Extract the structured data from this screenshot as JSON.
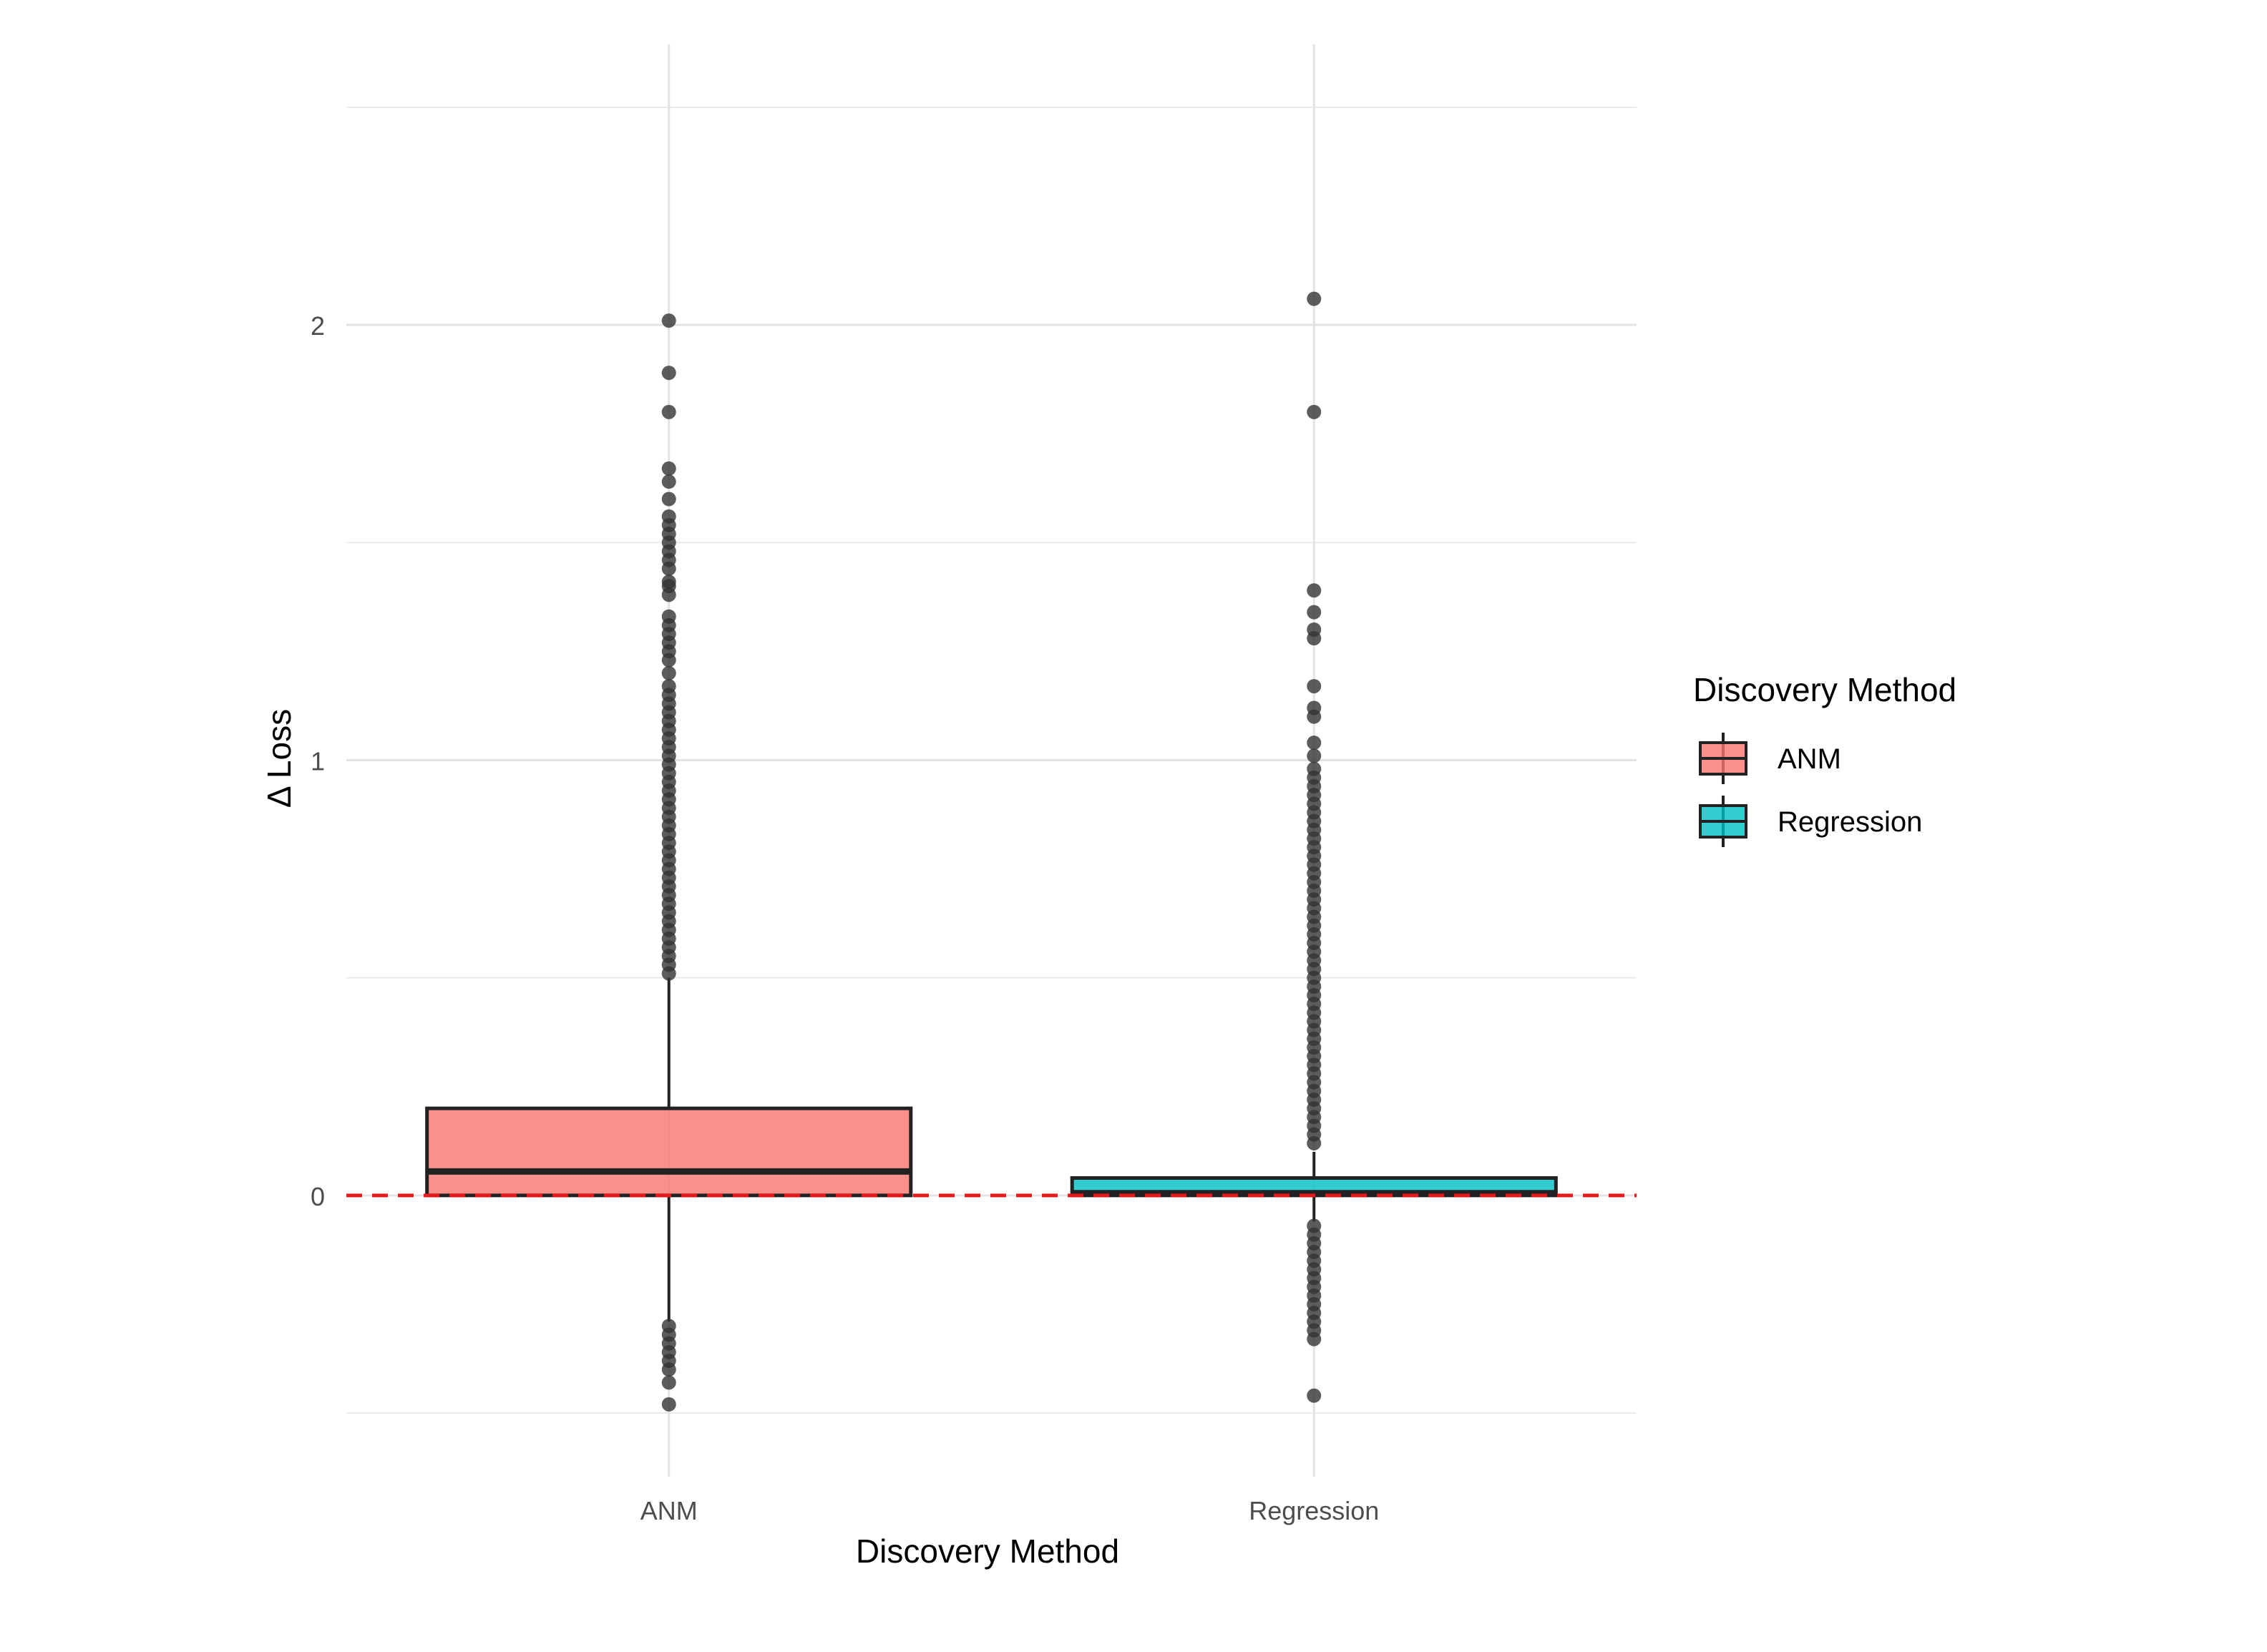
{
  "chart_data": {
    "type": "boxplot",
    "xlabel": "Discovery Method",
    "ylabel": "Δ Loss",
    "categories": [
      "ANM",
      "Regression"
    ],
    "ylim": [
      -0.5,
      2.5
    ],
    "yticks": [
      0,
      1,
      2
    ],
    "grid": true,
    "reference_line": {
      "y": 0,
      "style": "dashed",
      "color": "#e41a1c"
    },
    "legend": {
      "title": "Discovery Method",
      "position": "right",
      "entries": [
        {
          "label": "ANM",
          "color": "#f8766d"
        },
        {
          "label": "Regression",
          "color": "#00bfc4"
        }
      ]
    },
    "series": [
      {
        "category": "ANM",
        "color": "#f8766d",
        "q1": 0.0,
        "median": 0.055,
        "q3": 0.2,
        "whisker_low": -0.29,
        "whisker_high": 0.5,
        "outliers": [
          2.01,
          1.89,
          1.8,
          1.67,
          1.64,
          1.6,
          1.56,
          1.54,
          1.52,
          1.5,
          1.48,
          1.46,
          1.44,
          1.41,
          1.4,
          1.38,
          1.33,
          1.31,
          1.29,
          1.27,
          1.25,
          1.23,
          1.2,
          1.17,
          1.15,
          1.13,
          1.11,
          1.09,
          1.07,
          1.05,
          1.03,
          1.01,
          0.99,
          0.97,
          0.95,
          0.93,
          0.91,
          0.89,
          0.87,
          0.85,
          0.83,
          0.81,
          0.79,
          0.77,
          0.75,
          0.73,
          0.71,
          0.69,
          0.67,
          0.65,
          0.63,
          0.61,
          0.59,
          0.57,
          0.55,
          0.53,
          0.51,
          -0.3,
          -0.32,
          -0.34,
          -0.36,
          -0.38,
          -0.4,
          -0.43,
          -0.48
        ]
      },
      {
        "category": "Regression",
        "color": "#00bfc4",
        "q1": 0.0,
        "median": 0.005,
        "q3": 0.04,
        "whisker_low": -0.06,
        "whisker_high": 0.1,
        "outliers": [
          2.06,
          1.8,
          1.39,
          1.34,
          1.3,
          1.28,
          1.17,
          1.12,
          1.1,
          1.04,
          1.01,
          0.98,
          0.96,
          0.94,
          0.92,
          0.9,
          0.88,
          0.86,
          0.84,
          0.82,
          0.8,
          0.78,
          0.76,
          0.74,
          0.72,
          0.7,
          0.68,
          0.66,
          0.64,
          0.62,
          0.6,
          0.58,
          0.56,
          0.54,
          0.52,
          0.5,
          0.48,
          0.46,
          0.44,
          0.42,
          0.4,
          0.38,
          0.36,
          0.34,
          0.32,
          0.3,
          0.28,
          0.26,
          0.24,
          0.22,
          0.2,
          0.18,
          0.16,
          0.14,
          0.12,
          -0.07,
          -0.09,
          -0.11,
          -0.13,
          -0.15,
          -0.17,
          -0.19,
          -0.21,
          -0.23,
          -0.25,
          -0.27,
          -0.29,
          -0.31,
          -0.33,
          -0.46
        ]
      }
    ]
  }
}
